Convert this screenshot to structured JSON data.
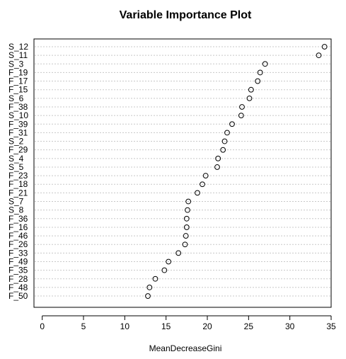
{
  "chart_data": {
    "type": "scatter",
    "title": "Variable Importance Plot",
    "xlabel": "MeanDecreaseGini",
    "ylabel": "",
    "xlim": [
      -1,
      35
    ],
    "xticks": [
      0,
      5,
      10,
      15,
      20,
      25,
      30,
      35
    ],
    "grid": "dotted horizontal",
    "marker": "open circle",
    "categories": [
      "S_12",
      "S_11",
      "S_3",
      "F_19",
      "F_17",
      "F_15",
      "S_6",
      "F_38",
      "S_10",
      "F_39",
      "F_31",
      "S_2",
      "F_29",
      "S_4",
      "S_5",
      "F_23",
      "F_18",
      "F_21",
      "S_7",
      "S_8",
      "F_36",
      "F_16",
      "F_46",
      "F_26",
      "F_33",
      "F_49",
      "F_35",
      "F_28",
      "F_48",
      "F_50"
    ],
    "values": [
      34.2,
      33.5,
      27.0,
      26.4,
      26.1,
      25.3,
      25.1,
      24.2,
      24.1,
      23.0,
      22.4,
      22.1,
      21.9,
      21.3,
      21.2,
      19.8,
      19.4,
      18.8,
      17.7,
      17.6,
      17.5,
      17.5,
      17.4,
      17.3,
      16.5,
      15.3,
      14.8,
      13.7,
      13.0,
      12.8
    ]
  }
}
